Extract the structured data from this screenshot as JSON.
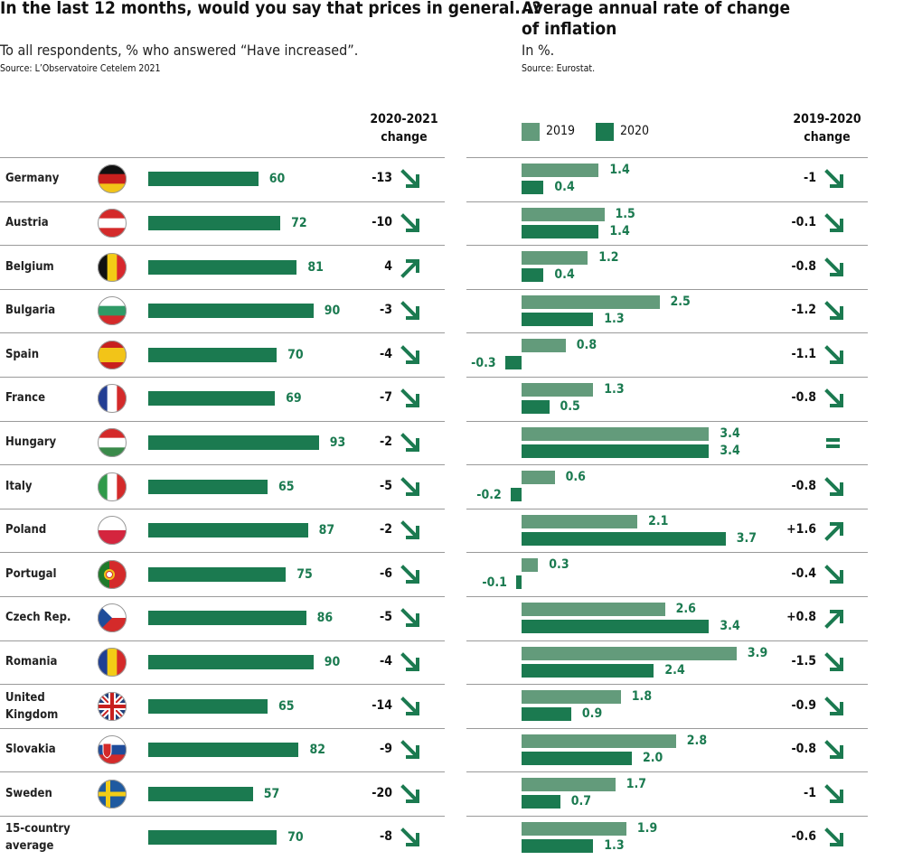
{
  "colors": {
    "dark": "#1b7a50",
    "light": "#639b7b"
  },
  "chart_data": [
    {
      "type": "bar",
      "title": "In the last 12 months, would you say that prices in general...?",
      "subtitle": "To all respondents, % who answered “Have increased”.",
      "source": "Source: L’Observatoire Cetelem 2021",
      "change_header": "2020-2021 change",
      "categories": [
        "Germany",
        "Austria",
        "Belgium",
        "Bulgaria",
        "Spain",
        "France",
        "Hungary",
        "Italy",
        "Poland",
        "Portugal",
        "Czech Rep.",
        "Romania",
        "United Kingdom",
        "Slovakia",
        "Sweden",
        "15-country average"
      ],
      "flags": [
        "flag-germany",
        "flag-austria",
        "flag-belgium",
        "flag-bulgaria",
        "flag-spain",
        "flag-france",
        "flag-hungary",
        "flag-italy",
        "flag-poland",
        "flag-portugal",
        "flag-czech",
        "flag-romania",
        "flag-uk",
        "flag-slovakia",
        "flag-sweden",
        ""
      ],
      "values": [
        60,
        72,
        81,
        90,
        70,
        69,
        93,
        65,
        87,
        75,
        86,
        90,
        65,
        82,
        57,
        70
      ],
      "change": [
        "-13",
        "-10",
        "4",
        "-3",
        "-4",
        "-7",
        "-2",
        "-5",
        "-2",
        "-6",
        "-5",
        "-4",
        "-14",
        "-9",
        "-20",
        "-8"
      ],
      "trend": [
        "down",
        "down",
        "up",
        "down",
        "down",
        "down",
        "down",
        "down",
        "down",
        "down",
        "down",
        "down",
        "down",
        "down",
        "down",
        "down"
      ]
    },
    {
      "type": "bar",
      "title": "Average annual rate of change of inflation",
      "subtitle": "In %.",
      "source": "Source: Eurostat.",
      "change_header": "2019-2020 change",
      "series": [
        {
          "name": "2019",
          "values": [
            "1.4",
            "1.5",
            "1.2",
            "2.5",
            "0.8",
            "1.3",
            "3.4",
            "0.6",
            "2.1",
            "0.3",
            "2.6",
            "3.9",
            "1.8",
            "2.8",
            "1.7",
            "1.9"
          ]
        },
        {
          "name": "2020",
          "values": [
            "0.4",
            "1.4",
            "0.4",
            "1.3",
            "-0.3",
            "0.5",
            "3.4",
            "-0.2",
            "3.7",
            "-0.1",
            "3.4",
            "2.4",
            "0.9",
            "2.0",
            "0.7",
            "1.3"
          ]
        }
      ],
      "change": [
        "-1",
        "-0.1",
        "-0.8",
        "-1.2",
        "-1.1",
        "-0.8",
        "=",
        "-0.8",
        "+1.6",
        "-0.4",
        "+0.8",
        "-1.5",
        "-0.9",
        "-0.8",
        "-1",
        "-0.6"
      ],
      "trend": [
        "down",
        "down",
        "down",
        "down",
        "down",
        "down",
        "equal",
        "down",
        "up",
        "down",
        "up",
        "down",
        "down",
        "down",
        "down",
        "down"
      ]
    }
  ]
}
